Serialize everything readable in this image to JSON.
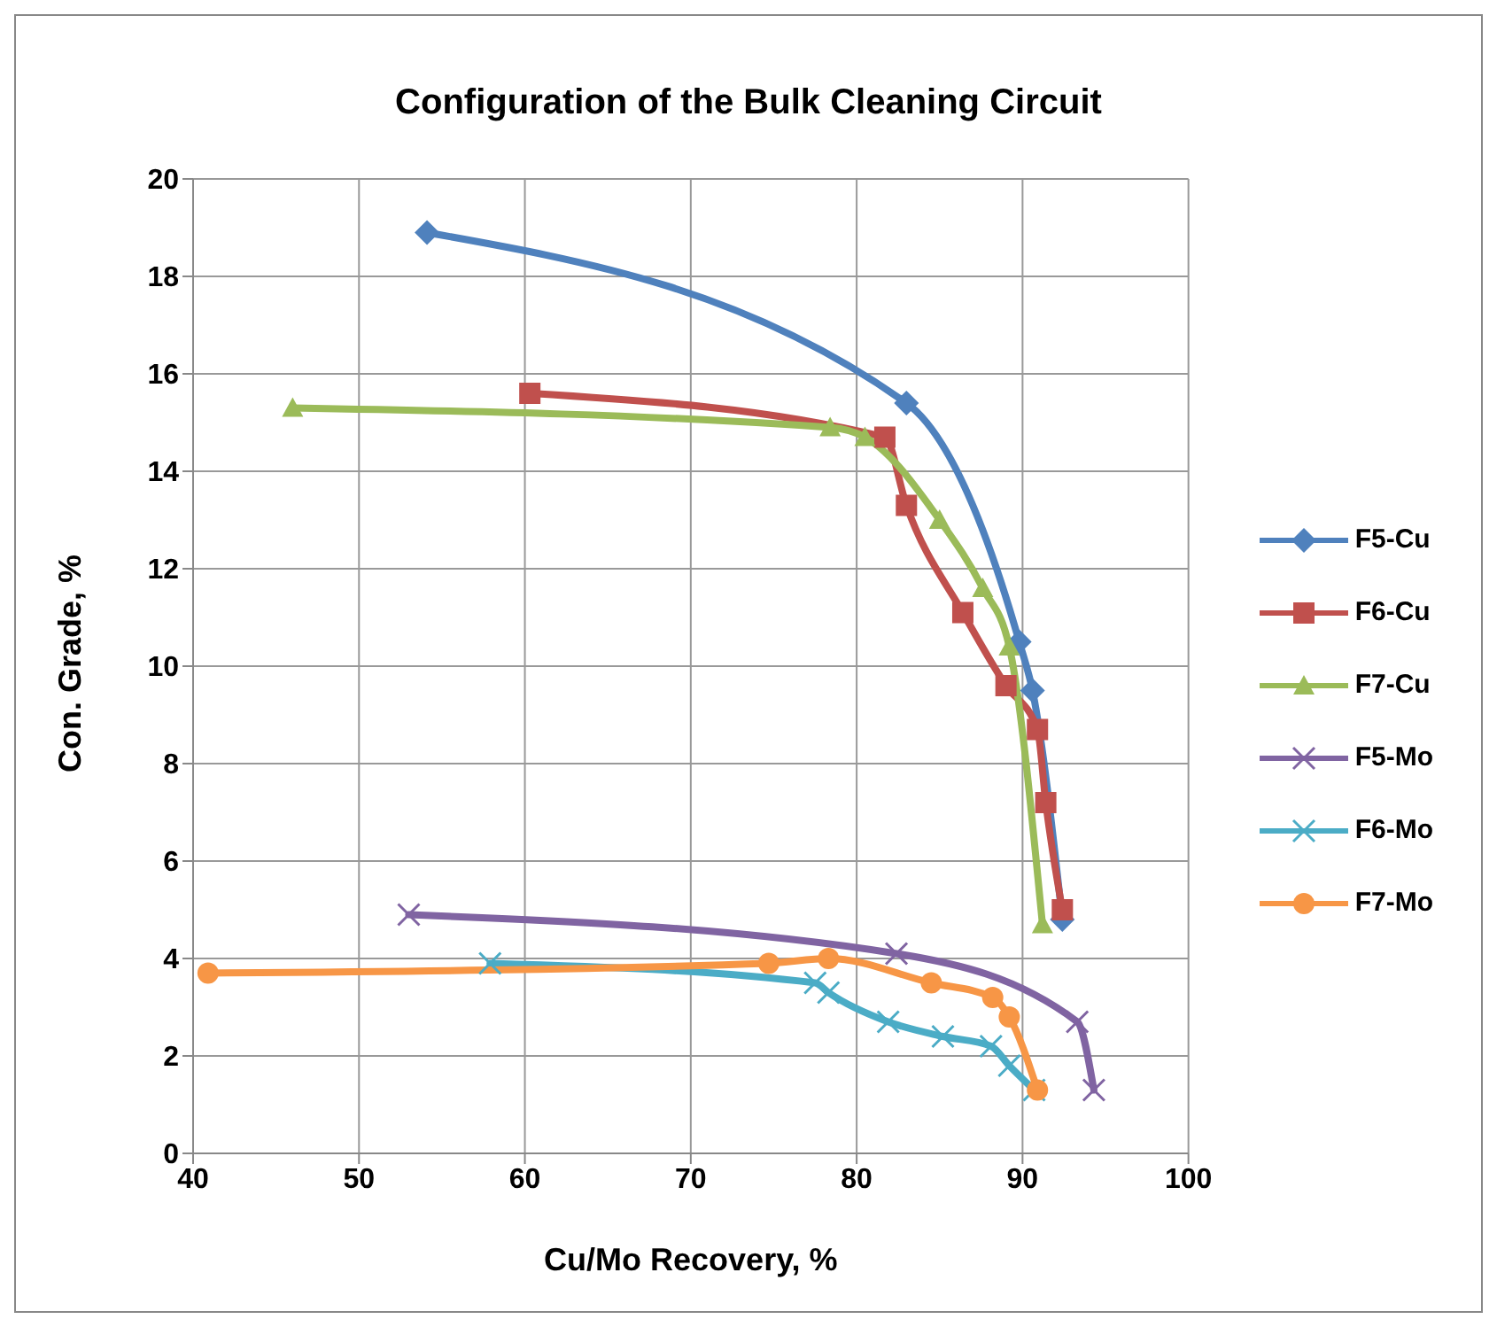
{
  "chart_data": {
    "type": "line",
    "title": "Configuration of the Bulk Cleaning Circuit",
    "xlabel": "Cu/Mo Recovery, %",
    "ylabel": "Con. Grade, %",
    "xlim": [
      40,
      100
    ],
    "xticks": [
      40,
      50,
      60,
      70,
      80,
      90,
      100
    ],
    "ylim": [
      0,
      20
    ],
    "yticks": [
      0,
      2,
      4,
      6,
      8,
      10,
      12,
      14,
      16,
      18,
      20
    ],
    "grid": true,
    "legend": "right",
    "line_style": "solid",
    "series": [
      {
        "name": "F5-Cu",
        "color": "#4f81bd",
        "marker": "diamond",
        "x": [
          54.1,
          83.0,
          89.8,
          90.6,
          92.4
        ],
        "values": [
          18.9,
          15.4,
          10.5,
          9.5,
          4.8
        ]
      },
      {
        "name": "F6-Cu",
        "color": "#c0504d",
        "marker": "square",
        "x": [
          60.3,
          81.7,
          83.0,
          86.4,
          89.0,
          90.9,
          91.4,
          92.4
        ],
        "values": [
          15.6,
          14.7,
          13.3,
          11.1,
          9.6,
          8.7,
          7.2,
          5.0
        ]
      },
      {
        "name": "F7-Cu",
        "color": "#9bbb59",
        "marker": "triangle",
        "x": [
          46.0,
          78.4,
          80.5,
          85.0,
          87.6,
          89.2,
          91.2
        ],
        "values": [
          15.3,
          14.9,
          14.7,
          13.0,
          11.6,
          10.4,
          4.7
        ]
      },
      {
        "name": "F5-Mo",
        "color": "#8064a2",
        "marker": "cross",
        "x": [
          53.0,
          82.4,
          93.3,
          94.3
        ],
        "values": [
          4.9,
          4.1,
          2.7,
          1.3
        ]
      },
      {
        "name": "F6-Mo",
        "color": "#4bacc6",
        "marker": "cross",
        "x": [
          57.9,
          77.5,
          78.3,
          81.9,
          85.2,
          88.1,
          89.2,
          90.7
        ],
        "values": [
          3.9,
          3.5,
          3.3,
          2.7,
          2.4,
          2.2,
          1.8,
          1.3
        ]
      },
      {
        "name": "F7-Mo",
        "color": "#f79646",
        "marker": "circle",
        "x": [
          40.9,
          74.7,
          78.3,
          84.5,
          88.2,
          89.2,
          90.9
        ],
        "values": [
          3.7,
          3.9,
          4.0,
          3.5,
          3.2,
          2.8,
          1.3
        ]
      }
    ]
  }
}
